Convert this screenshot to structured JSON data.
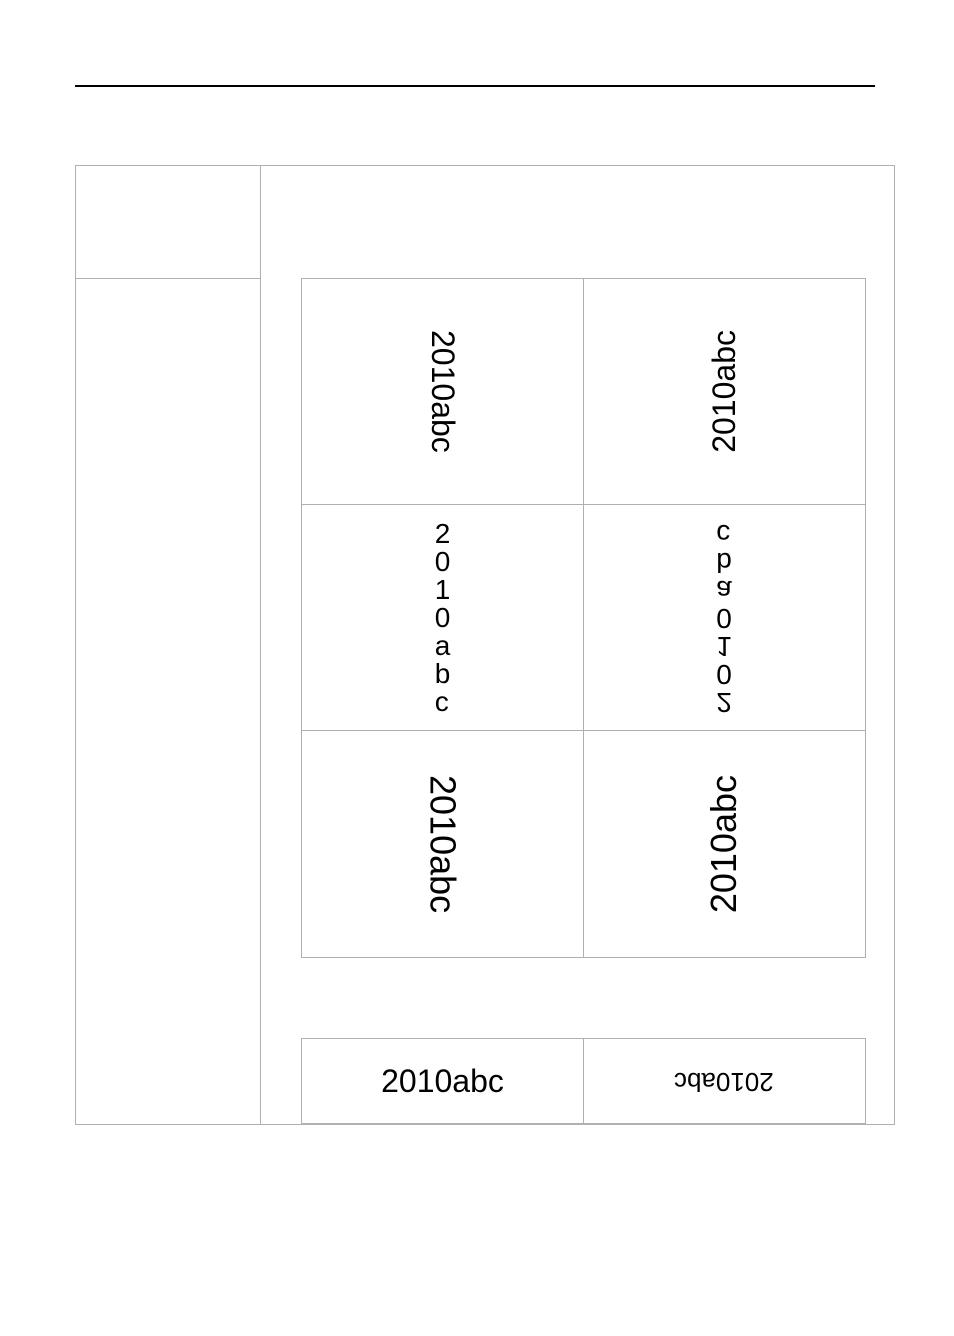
{
  "text": "2010abc",
  "layout": {
    "outer_border_color": "#b0b0b0",
    "hr_color": "#000000",
    "background": "#ffffff"
  },
  "cells": {
    "r1c1": {
      "value": "2010abc",
      "orientation": "sideways-right",
      "fontsize": 32
    },
    "r1c2": {
      "value": "2010abc",
      "orientation": "sideways-left",
      "fontsize": 32
    },
    "r2c1": {
      "value": "2010abc",
      "orientation": "vertical-stacked",
      "fontsize": 28
    },
    "r2c2": {
      "value": "2010abc",
      "orientation": "vertical-stacked-reversed",
      "fontsize": 28
    },
    "r3c1": {
      "value": "2010abc",
      "orientation": "sideways-right",
      "fontsize": 36
    },
    "r3c2": {
      "value": "2010abc",
      "orientation": "sideways-left",
      "fontsize": 36
    },
    "b1c1": {
      "value": "2010abc",
      "orientation": "normal",
      "fontsize": 32
    },
    "b1c2": {
      "value": "2010abc",
      "orientation": "rotated-180",
      "fontsize": 26
    }
  }
}
